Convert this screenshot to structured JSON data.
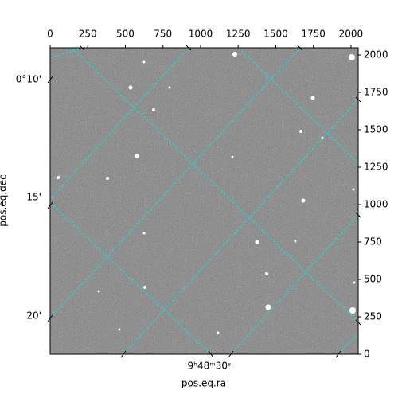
{
  "chart_data": {
    "type": "image",
    "xlabel": "pos.eq.ra",
    "ylabel": "pos.eq.dec",
    "xlim": [
      0,
      2048
    ],
    "ylim": [
      0,
      2048
    ],
    "xticks": [
      0,
      250,
      500,
      750,
      1000,
      1250,
      1500,
      1750,
      2000
    ],
    "yticks": [
      0,
      250,
      500,
      750,
      1000,
      1250,
      1500,
      1750,
      2000
    ],
    "ra_tick_labels": [
      "9ʰ48ᵐ30ˢ"
    ],
    "dec_tick_labels": [
      "0°10'",
      "15'",
      "20'"
    ],
    "grid_color": "#00e5e5"
  }
}
